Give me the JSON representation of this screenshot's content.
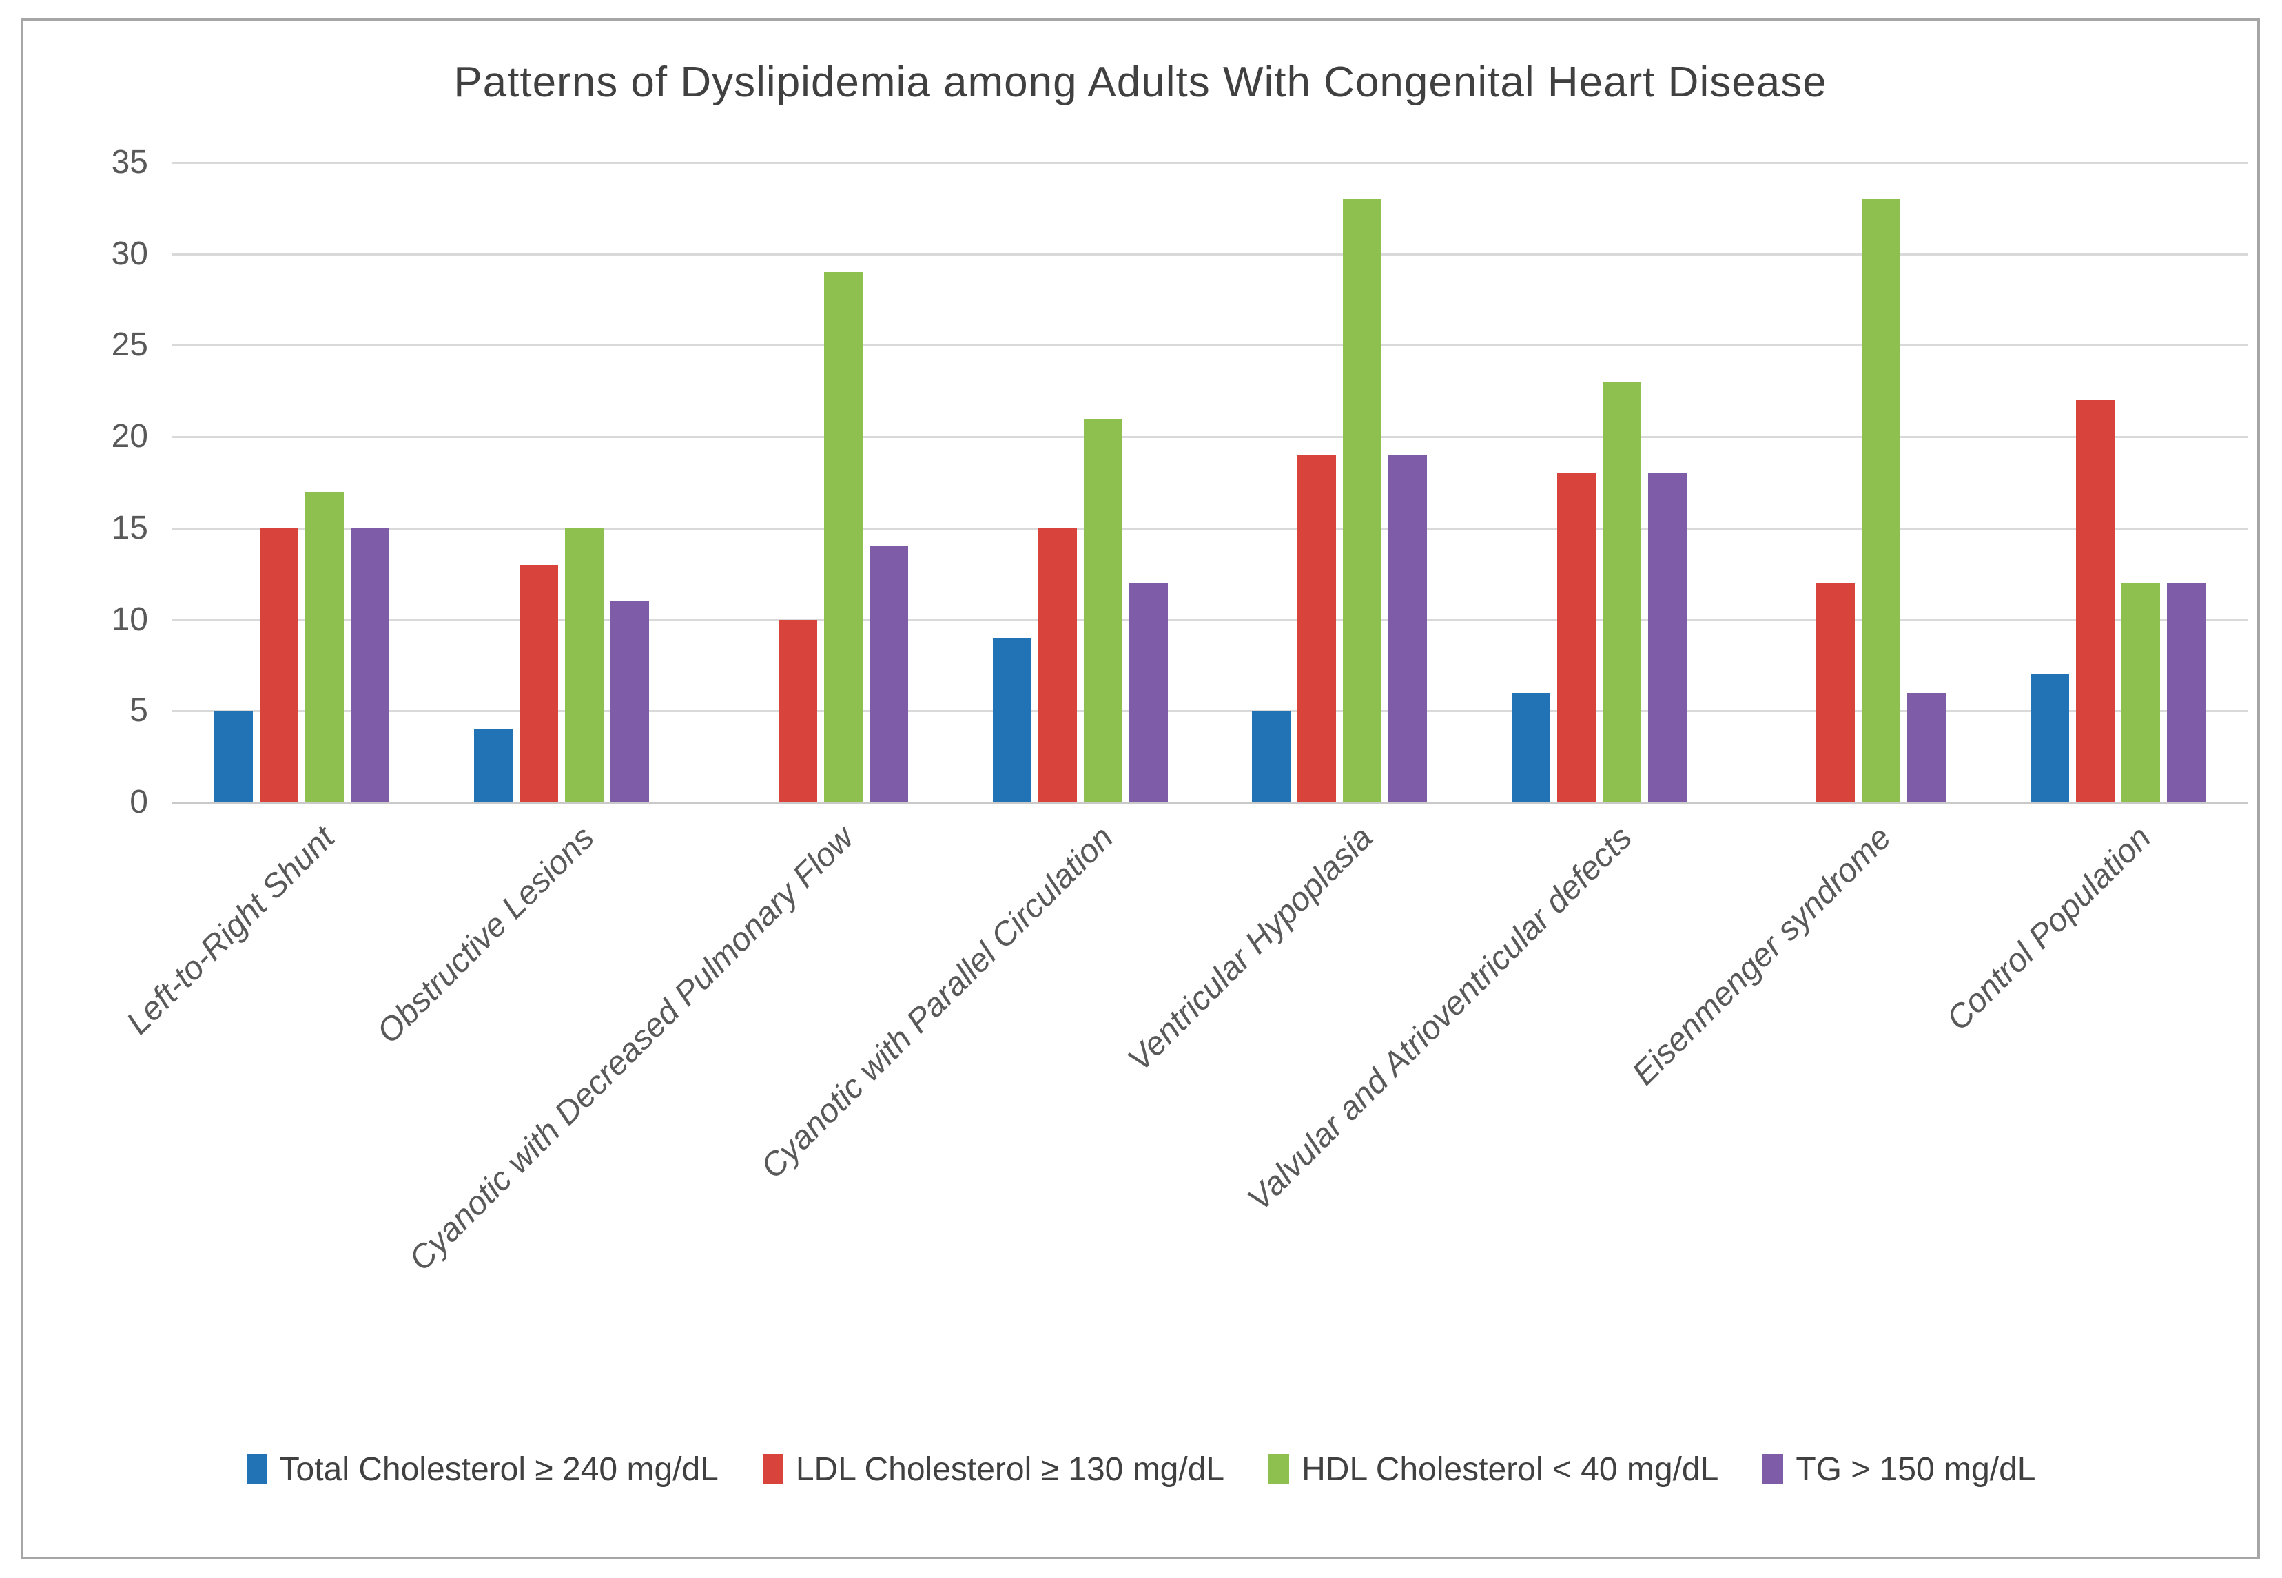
{
  "chart_data": {
    "type": "bar",
    "title": "Patterns of Dyslipidemia among Adults With Congenital Heart Disease",
    "categories": [
      "Left-to-Right Shunt",
      "Obstructive Lesions",
      "Cyanotic with Decreased Pulmonary Flow",
      "Cyanotic with Parallel Circulation",
      "Ventricular Hypoplasia",
      "Valvular and Atrioventricular defects",
      "Eisenmenger syndrome",
      "Control Population"
    ],
    "series": [
      {
        "name": "Total Cholesterol ≥ 240 mg/dL",
        "color": "#2173b5",
        "values": [
          5,
          4,
          0,
          9,
          5,
          6,
          0,
          7
        ]
      },
      {
        "name": "LDL Cholesterol ≥ 130 mg/dL",
        "color": "#d8433c",
        "values": [
          15,
          13,
          10,
          15,
          19,
          18,
          12,
          22
        ]
      },
      {
        "name": "HDL Cholesterol < 40 mg/dL",
        "color": "#8dc04f",
        "values": [
          17,
          15,
          29,
          21,
          33,
          23,
          33,
          12
        ]
      },
      {
        "name": "TG > 150 mg/dL",
        "color": "#7e5ca8",
        "values": [
          15,
          11,
          14,
          12,
          19,
          18,
          6,
          12
        ]
      }
    ],
    "xlabel": "",
    "ylabel": "",
    "ylim": [
      0,
      35
    ],
    "yticks": [
      0,
      5,
      10,
      15,
      20,
      25,
      30,
      35
    ],
    "grid": true,
    "legend_position": "bottom",
    "colors": {
      "gridline": "#d9d9d9",
      "axis_line": "#c9c9c9",
      "frame_border": "#a6a6a6",
      "title_text": "#404040",
      "tick_text": "#595959",
      "legend_text": "#404040"
    }
  }
}
